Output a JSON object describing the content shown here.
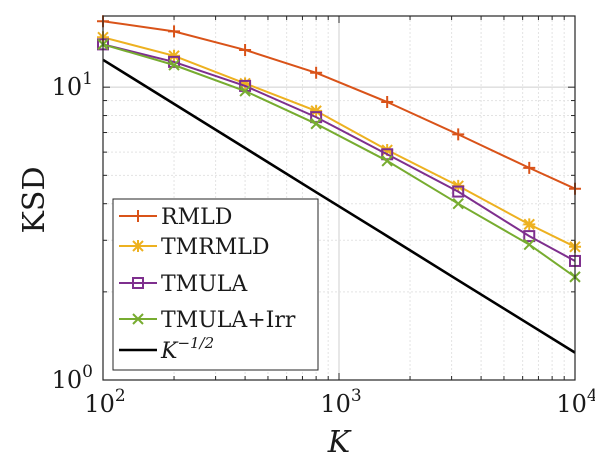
{
  "chart_data": {
    "type": "line",
    "title": "",
    "xlabel": "K",
    "ylabel": "KSD",
    "xscale": "log",
    "yscale": "log",
    "xlim": [
      100,
      10000
    ],
    "ylim": [
      1,
      17.5
    ],
    "grid": true,
    "legend_position": "lower-left",
    "x_ticks": [
      {
        "value": 100,
        "base": "10",
        "exp": "2"
      },
      {
        "value": 1000,
        "base": "10",
        "exp": "3"
      },
      {
        "value": 10000,
        "base": "10",
        "exp": "4"
      }
    ],
    "y_ticks": [
      {
        "value": 1,
        "base": "10",
        "exp": "0"
      },
      {
        "value": 10,
        "base": "10",
        "exp": "1"
      }
    ],
    "x": [
      100,
      200,
      400,
      800,
      1600,
      3200,
      6400,
      10000
    ],
    "series": [
      {
        "name": "RMLD",
        "marker": "plus",
        "color": "#D95319",
        "values": [
          16.8,
          15.5,
          13.4,
          11.2,
          8.9,
          6.9,
          5.3,
          4.5
        ]
      },
      {
        "name": "TMRMLD",
        "marker": "star",
        "color": "#EDB120",
        "values": [
          14.8,
          12.8,
          10.3,
          8.3,
          6.1,
          4.6,
          3.4,
          2.85
        ]
      },
      {
        "name": "TMULA",
        "marker": "square",
        "color": "#7E2F8E",
        "values": [
          14.0,
          12.2,
          10.1,
          7.9,
          5.9,
          4.4,
          3.1,
          2.55
        ]
      },
      {
        "name": "TMULA+Irr",
        "marker": "x",
        "color": "#77AC30",
        "values": [
          14.0,
          11.9,
          9.7,
          7.5,
          5.6,
          4.0,
          2.9,
          2.25
        ]
      },
      {
        "name": "K^{-1/2}",
        "marker": "none",
        "color": "#000000",
        "values": [
          12.4,
          8.77,
          6.2,
          4.38,
          3.1,
          2.19,
          1.55,
          1.24
        ]
      }
    ],
    "legend_labels": [
      {
        "text": "RMLD"
      },
      {
        "text": "TMRMLD"
      },
      {
        "text": "TMULA"
      },
      {
        "text": "TMULA+Irr"
      },
      {
        "text": "K",
        "sup": "−1/2"
      }
    ]
  }
}
